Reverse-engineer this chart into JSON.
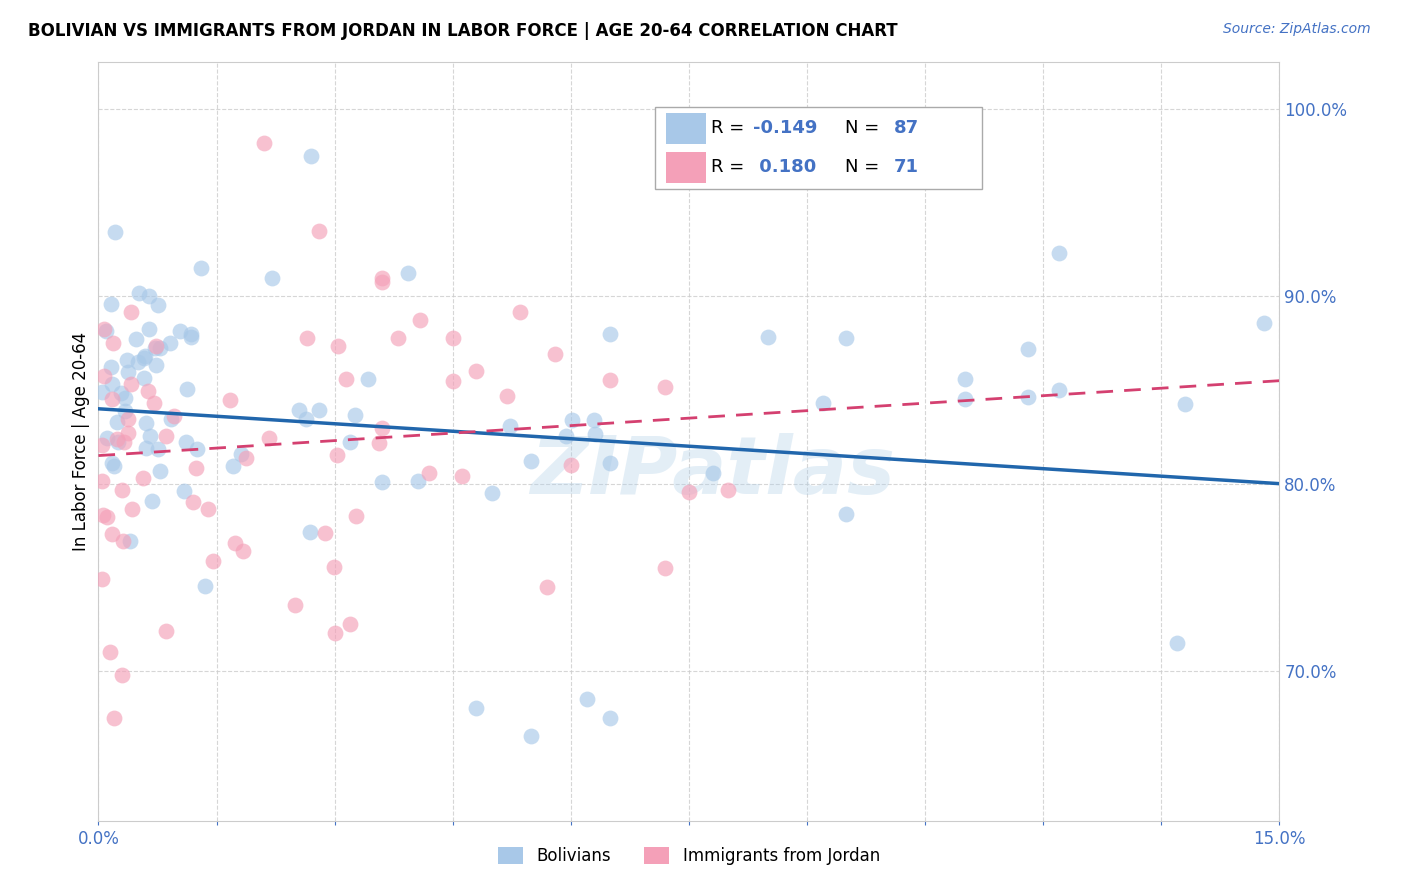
{
  "title": "BOLIVIAN VS IMMIGRANTS FROM JORDAN IN LABOR FORCE | AGE 20-64 CORRELATION CHART",
  "source": "Source: ZipAtlas.com",
  "ylabel": "In Labor Force | Age 20-64",
  "xmin": 0.0,
  "xmax": 15.0,
  "ymin": 62.0,
  "ymax": 102.5,
  "yticks": [
    70.0,
    80.0,
    90.0,
    100.0
  ],
  "ytick_labels": [
    "70.0%",
    "80.0%",
    "90.0%",
    "100.0%"
  ],
  "xticks": [
    0.0,
    1.5,
    3.0,
    4.5,
    6.0,
    7.5,
    9.0,
    10.5,
    12.0,
    13.5,
    15.0
  ],
  "blue_color": "#a8c8e8",
  "pink_color": "#f4a0b8",
  "trendline_blue_color": "#2166ac",
  "trendline_pink_color": "#d44070",
  "blue_R": -0.149,
  "blue_N": 87,
  "pink_R": 0.18,
  "pink_N": 71,
  "blue_trend_y0": 84.0,
  "blue_trend_y1": 80.0,
  "pink_trend_y0": 81.5,
  "pink_trend_y1": 85.5,
  "background_color": "#ffffff",
  "grid_color": "#cccccc",
  "watermark_text": "ZIPatlas",
  "watermark_color": "#b0d0e8",
  "watermark_alpha": 0.35
}
